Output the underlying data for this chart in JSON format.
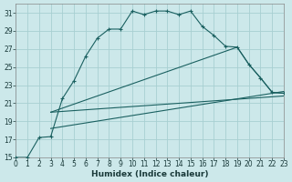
{
  "xlabel": "Humidex (Indice chaleur)",
  "bg_color": "#cce8ea",
  "grid_color": "#a8cfd2",
  "line_color": "#1a6060",
  "xlim": [
    0,
    23
  ],
  "ylim": [
    15,
    32
  ],
  "yticks": [
    15,
    17,
    19,
    21,
    23,
    25,
    27,
    29,
    31
  ],
  "xticks": [
    0,
    1,
    2,
    3,
    4,
    5,
    6,
    7,
    8,
    9,
    10,
    11,
    12,
    13,
    14,
    15,
    16,
    17,
    18,
    19,
    20,
    21,
    22,
    23
  ],
  "line1_x": [
    0,
    1,
    2,
    3,
    4,
    5,
    6,
    7,
    8,
    9,
    10,
    11,
    12,
    13,
    14,
    15,
    16,
    17,
    18,
    19,
    20,
    21,
    22,
    23
  ],
  "line1_y": [
    15,
    15,
    17.2,
    17.3,
    21.5,
    23.5,
    26.2,
    28.2,
    29.2,
    29.2,
    31.2,
    30.8,
    31.2,
    31.2,
    30.8,
    31.2,
    29.5,
    28.5,
    27.3,
    27.2,
    25.3,
    23.8,
    22.2,
    22.1
  ],
  "line2_x": [
    3,
    19,
    20,
    21,
    22,
    23
  ],
  "line2_y": [
    20.0,
    27.2,
    25.3,
    23.8,
    22.2,
    22.1
  ],
  "line3_x": [
    3,
    23
  ],
  "line3_y": [
    20.0,
    21.8
  ],
  "line4_x": [
    3,
    23
  ],
  "line4_y": [
    18.2,
    22.3
  ]
}
